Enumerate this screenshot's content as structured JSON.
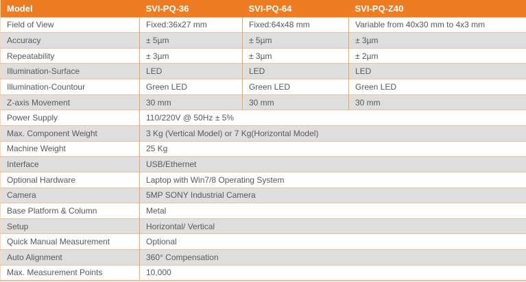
{
  "table": {
    "colors": {
      "header_bg": "#ee7c23",
      "header_text": "#ffffff",
      "row_bg": "#fdfdfd",
      "row_alt_bg": "#dedede",
      "border_horizontal": "#f0bd92",
      "divider_vertical": "#eda25e",
      "border_outer": "#eb9a57",
      "border_light": "#f5d5b5",
      "text": "#58595b"
    },
    "header": {
      "columns": [
        "Model",
        "SVI-PQ-36",
        "SVI-PQ-64",
        "SVI-PQ-Z40"
      ]
    },
    "rows": [
      {
        "label": "Field of View",
        "values": [
          "Fixed:36x27 mm",
          "Fixed:64x48 mm",
          "Variable from 40x30 mm to 4x3 mm"
        ]
      },
      {
        "label": "Accuracy",
        "values": [
          "± 5µm",
          "± 5µm",
          "± 3µm"
        ]
      },
      {
        "label": "Repeatability",
        "values": [
          "± 3µm",
          "± 3µm",
          "± 2µm"
        ]
      },
      {
        "label": "Illumination-Surface",
        "values": [
          "LED",
          "LED",
          "LED"
        ]
      },
      {
        "label": "Illumination-Countour",
        "values": [
          "Green LED",
          "Green LED",
          "Green LED"
        ]
      },
      {
        "label": "Z-axis Movement",
        "values": [
          "30 mm",
          "30 mm",
          "30 mm"
        ]
      },
      {
        "label": "Power Supply",
        "values": [
          "110/220V @ 50Hz ± 5%"
        ]
      },
      {
        "label": "Max. Component Weight",
        "values": [
          "3 Kg (Vertical Model) or 7 Kg(Horizontal Model)"
        ]
      },
      {
        "label": "Machine Weight",
        "values": [
          "25 Kg"
        ]
      },
      {
        "label": "Interface",
        "values": [
          "USB/Ethernet"
        ]
      },
      {
        "label": "Optional Hardware",
        "values": [
          "Laptop with Win7/8 Operating System"
        ]
      },
      {
        "label": "Camera",
        "values": [
          "5MP SONY Industrial Camera"
        ]
      },
      {
        "label": "Base Platform & Column",
        "values": [
          "Metal"
        ]
      },
      {
        "label": "Setup",
        "values": [
          "Horizontal/ Vertical"
        ]
      },
      {
        "label": "Quick Manual Measurement",
        "values": [
          "Optional"
        ]
      },
      {
        "label": "Auto Alignment",
        "values": [
          "360° Compensation"
        ]
      },
      {
        "label": "Max. Measurement Points",
        "values": [
          "10,000"
        ]
      }
    ]
  }
}
